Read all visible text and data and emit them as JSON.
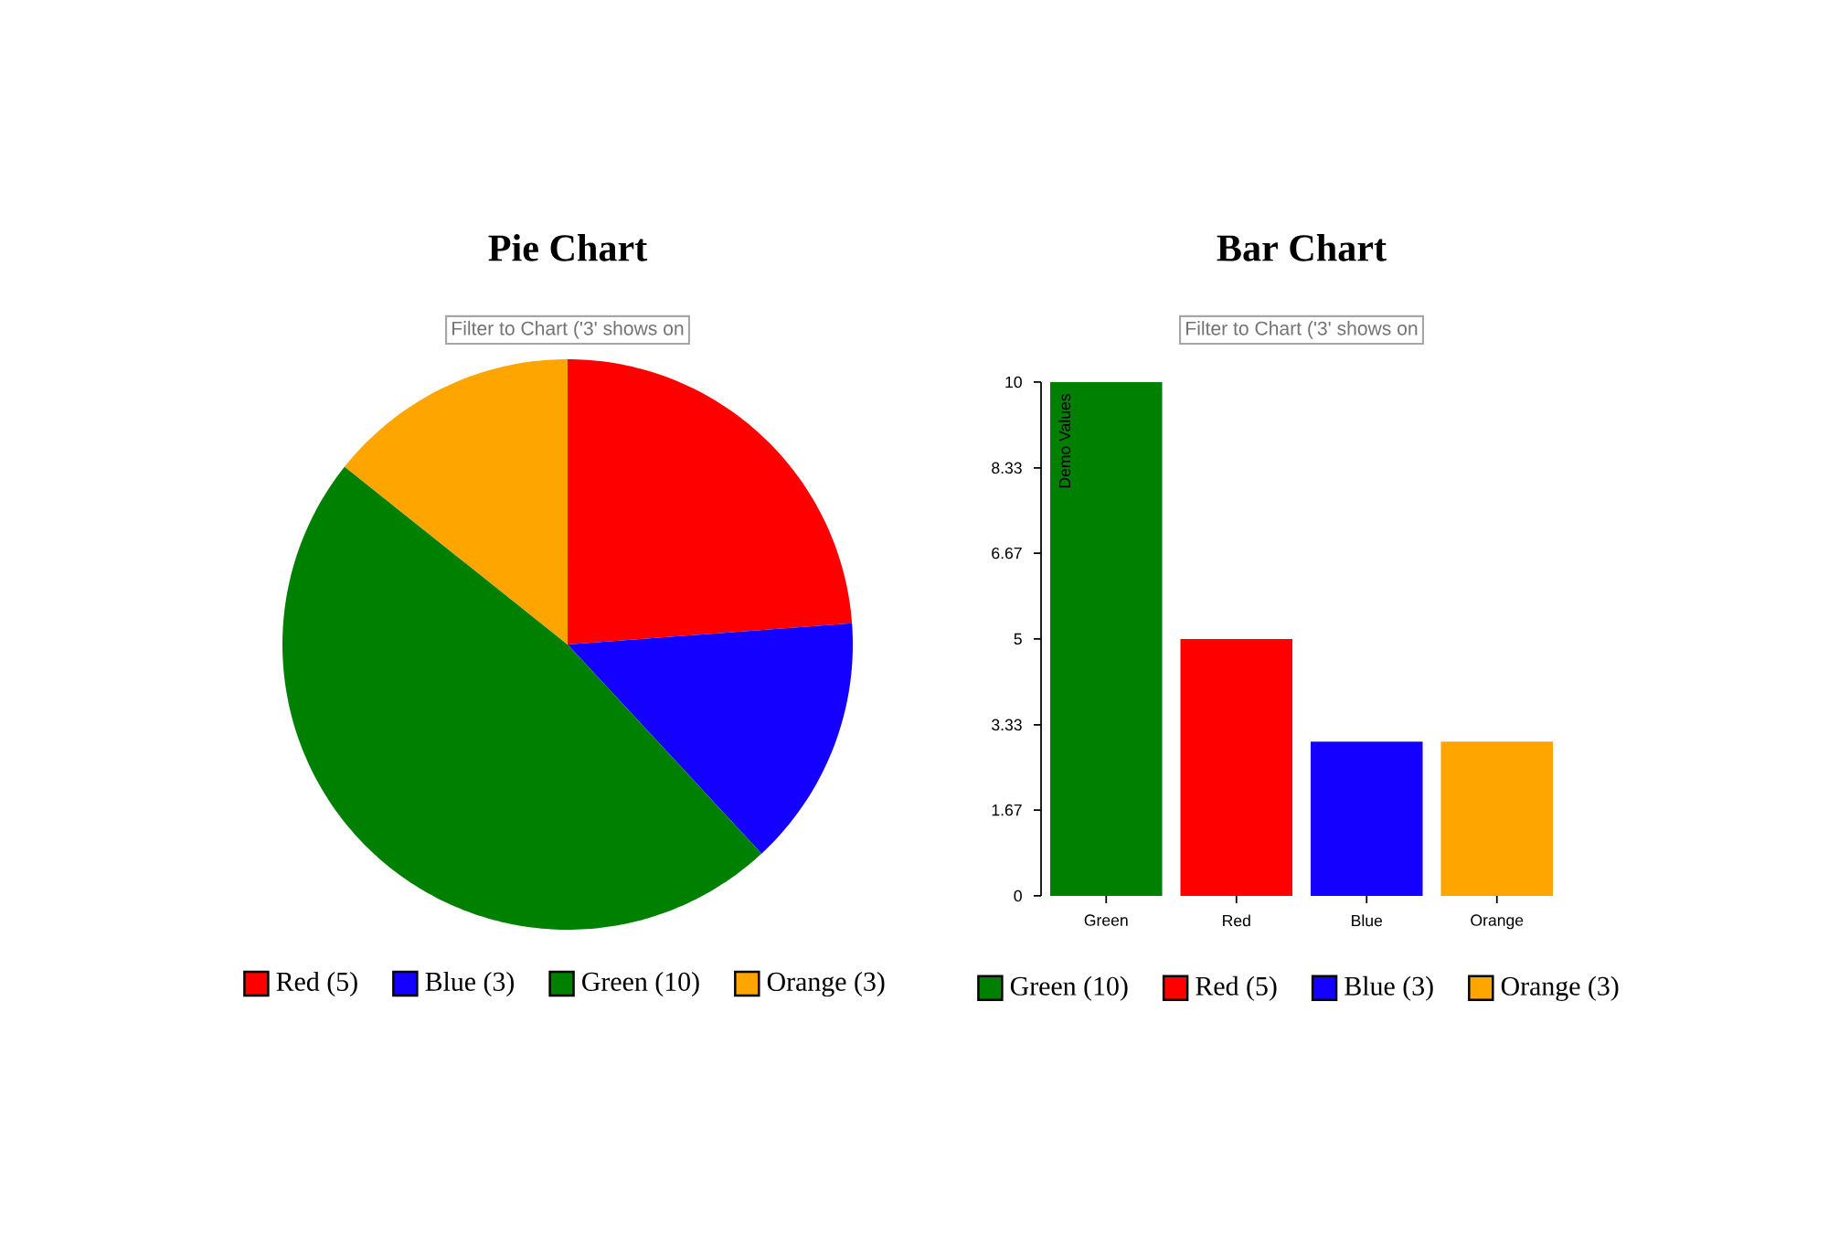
{
  "chart_data": [
    {
      "type": "pie",
      "title": "Pie Chart",
      "annotations": [
        "Filter to Chart ('3' shows on"
      ],
      "categories": [
        "Red (5)",
        "Blue (3)",
        "Green (10)",
        "Orange (3)"
      ],
      "values": [
        5,
        3,
        10,
        3
      ],
      "colors": [
        "#ff0000",
        "#1400ff",
        "#008000",
        "#ffa500"
      ],
      "legend": "bottom"
    },
    {
      "type": "bar",
      "title": "Bar Chart",
      "annotations": [
        "Filter to Chart ('3' shows on"
      ],
      "ylabel": "Demo Values",
      "categories": [
        "Green",
        "Red",
        "Blue",
        "Orange"
      ],
      "ylim": [
        0,
        10
      ],
      "yticks": [
        0,
        1.67,
        3.33,
        5,
        6.67,
        8.33,
        10
      ],
      "legend": "bottom",
      "series": [
        {
          "name": "Green (10)",
          "color": "#008000",
          "values": [
            10,
            null,
            null,
            null
          ]
        },
        {
          "name": "Red (5)",
          "color": "#ff0000",
          "values": [
            null,
            5,
            null,
            null
          ]
        },
        {
          "name": "Blue (3)",
          "color": "#1400ff",
          "values": [
            null,
            null,
            3,
            null
          ]
        },
        {
          "name": "Orange (3)",
          "color": "#ffa500",
          "values": [
            null,
            null,
            null,
            3
          ]
        }
      ]
    }
  ]
}
